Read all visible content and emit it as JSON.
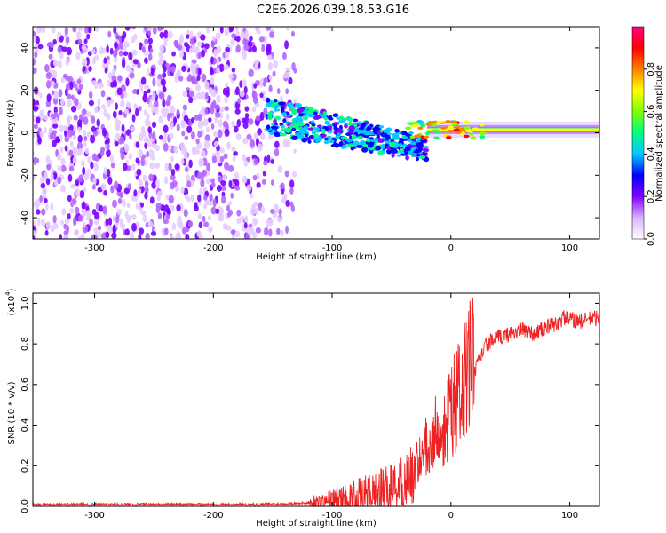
{
  "figure_title": "C2E6.2026.039.18.53.G16",
  "chart_data": [
    {
      "type": "heatmap",
      "title": "C2E6.2026.039.18.53.G16",
      "xlabel": "Height of straight line (km)",
      "ylabel": "Frequency (Hz)",
      "xlim": [
        -352,
        125
      ],
      "ylim": [
        -50,
        50
      ],
      "xticks": [
        -300,
        -200,
        -100,
        0,
        100
      ],
      "yticks": [
        -40,
        -20,
        0,
        20,
        40
      ],
      "regions": [
        {
          "name": "noise",
          "x_range": [
            -352,
            -130
          ],
          "y_range": [
            -50,
            50
          ],
          "amplitude": 0.1
        },
        {
          "name": "signal-scatter",
          "x_range": [
            -155,
            -20
          ],
          "y_center_at_start": 8,
          "y_center_at_end": -8,
          "amplitude": 0.3
        },
        {
          "name": "stable-tone",
          "x_range": [
            -20,
            125
          ],
          "y_center": 1.5,
          "amplitude": 0.7
        }
      ],
      "colorbar": {
        "label": "Normalized spectral amplitude",
        "range": [
          0,
          1
        ],
        "ticks": [
          "0.0",
          "0.2",
          "0.4",
          "0.6",
          "0.8"
        ],
        "colors": [
          "#ffffff",
          "#d9b3ff",
          "#8000ff",
          "#0000ff",
          "#00c8ff",
          "#00ff80",
          "#80ff00",
          "#ffff00",
          "#ff8000",
          "#ff0000",
          "#ff0080"
        ]
      }
    },
    {
      "type": "line",
      "xlabel": "Height of straight line (km)",
      "ylabel": "SNR (10 * v/v)",
      "scale_label_prefix": "(x10",
      "scale_label_exp": "4",
      "scale_label_suffix": ")",
      "xlim": [
        -352,
        125
      ],
      "ylim": [
        0,
        1.05
      ],
      "xticks": [
        -300,
        -200,
        -100,
        0,
        100
      ],
      "yticks": [
        "0.0",
        "0.2",
        "0.4",
        "0.6",
        "0.8",
        "1.0"
      ],
      "color": "#ee2222",
      "series": [
        {
          "name": "SNR",
          "x": [
            -352,
            -300,
            -250,
            -200,
            -160,
            -130,
            -110,
            -90,
            -70,
            -50,
            -40,
            -30,
            -25,
            -20,
            -15,
            -10,
            -5,
            0,
            5,
            10,
            15,
            20,
            25,
            30,
            40,
            50,
            60,
            70,
            80,
            90,
            95,
            100,
            110,
            120,
            125
          ],
          "values": [
            0.01,
            0.01,
            0.01,
            0.01,
            0.01,
            0.015,
            0.02,
            0.04,
            0.06,
            0.09,
            0.12,
            0.17,
            0.22,
            0.27,
            0.3,
            0.33,
            0.36,
            0.42,
            0.45,
            0.5,
            0.58,
            0.66,
            0.74,
            0.8,
            0.83,
            0.85,
            0.87,
            0.85,
            0.88,
            0.9,
            0.93,
            0.92,
            0.91,
            0.93,
            0.92
          ]
        }
      ]
    }
  ]
}
